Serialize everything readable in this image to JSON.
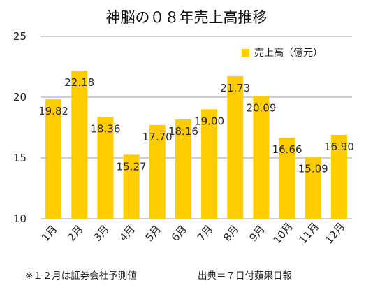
{
  "chart_data": {
    "type": "bar",
    "title": "神脳の０８年売上高推移",
    "categories": [
      "1月",
      "2月",
      "3月",
      "4月",
      "5月",
      "6月",
      "7月",
      "8月",
      "9月",
      "10月",
      "11月",
      "12月"
    ],
    "series": [
      {
        "name": "売上高（億元）",
        "values": [
          19.82,
          22.18,
          18.36,
          15.27,
          17.7,
          18.16,
          19.0,
          21.73,
          20.09,
          16.66,
          15.09,
          16.9
        ],
        "labels": [
          "19.82",
          "22.18",
          "18.36",
          "15.27",
          "17.70",
          "18.16",
          "19.00",
          "21.73",
          "20.09",
          "16.66",
          "15.09",
          "16.90"
        ],
        "color": "#FFCC00"
      }
    ],
    "yticks": [
      "10",
      "15",
      "20",
      "25"
    ],
    "ylim": [
      10,
      25
    ],
    "grid": true,
    "legend": "top-right",
    "xlabel": "",
    "ylabel": ""
  },
  "footnote": {
    "note": "※１２月は証券会社予測値",
    "source": "出典＝７日付蘋果日報"
  },
  "colors": {
    "bar": "#FFCC00",
    "grid": "#a0a0a0"
  }
}
